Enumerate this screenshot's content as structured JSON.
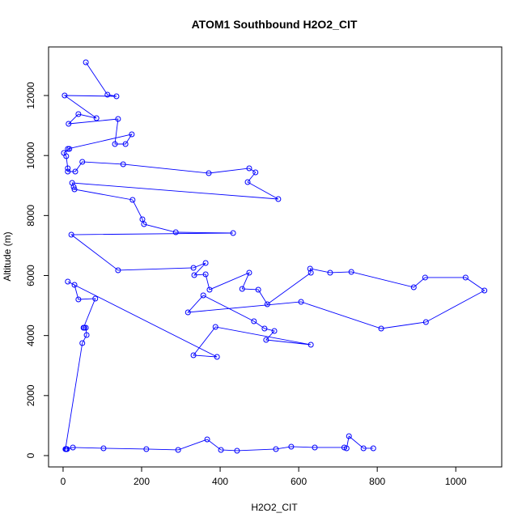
{
  "chart_data": {
    "type": "line",
    "title": "ATOM1 Southbound H2O2_CIT",
    "x_label": "H2O2_CIT",
    "y_label": "Altitude (m)",
    "series": [
      {
        "name": "H2O2_CIT",
        "color": "#0000ff",
        "x": [
          58,
          113,
          136,
          4,
          85,
          39,
          14,
          140,
          132,
          159,
          175,
          12,
          16,
          2,
          8,
          12,
          12,
          31,
          49,
          153,
          371,
          474,
          490,
          470,
          548,
          23,
          27,
          29,
          177,
          202,
          206,
          287,
          433,
          21,
          140,
          332,
          363,
          334,
          363,
          373,
          474,
          456,
          497,
          520,
          631,
          629,
          680,
          734,
          893,
          922,
          1025,
          1073,
          924,
          810,
          606,
          318,
          357,
          486,
          513,
          538,
          517,
          631,
          388,
          332,
          392,
          12,
          29,
          39,
          82,
          52,
          54,
          58,
          60,
          49,
          6,
          10,
          8,
          25,
          103,
          212,
          293,
          367,
          402,
          443,
          542,
          581,
          641,
          716,
          722,
          728,
          765,
          790
        ],
        "values": [
          13107,
          12028,
          11974,
          12000,
          11245,
          11380,
          11057,
          11218,
          10383,
          10383,
          10707,
          10221,
          10221,
          10086,
          9978,
          9574,
          9466,
          9466,
          9790,
          9709,
          9412,
          9574,
          9439,
          9115,
          8549,
          9088,
          8954,
          8873,
          8522,
          7875,
          7713,
          7443,
          7416,
          7362,
          6176,
          6257,
          6418,
          6014,
          6041,
          5529,
          6095,
          5556,
          5529,
          5043,
          6095,
          6230,
          6095,
          6122,
          5610,
          5934,
          5934,
          5502,
          4450,
          4234,
          5124,
          4773,
          5339,
          4477,
          4234,
          4153,
          3857,
          3695,
          4288,
          3344,
          3290,
          5798,
          5690,
          5205,
          5232,
          4261,
          4261,
          4261,
          4018,
          3749,
          216,
          216,
          216,
          270,
          243,
          216,
          189,
          539,
          189,
          162,
          216,
          297,
          270,
          270,
          243,
          647,
          243,
          243
        ]
      }
    ],
    "xlim": [
      -37,
      1117
    ],
    "ylim": [
      -378,
      13619
    ],
    "xticks": [
      0,
      200,
      400,
      600,
      800,
      1000
    ],
    "yticks": [
      0,
      2000,
      4000,
      6000,
      8000,
      10000,
      12000
    ]
  }
}
